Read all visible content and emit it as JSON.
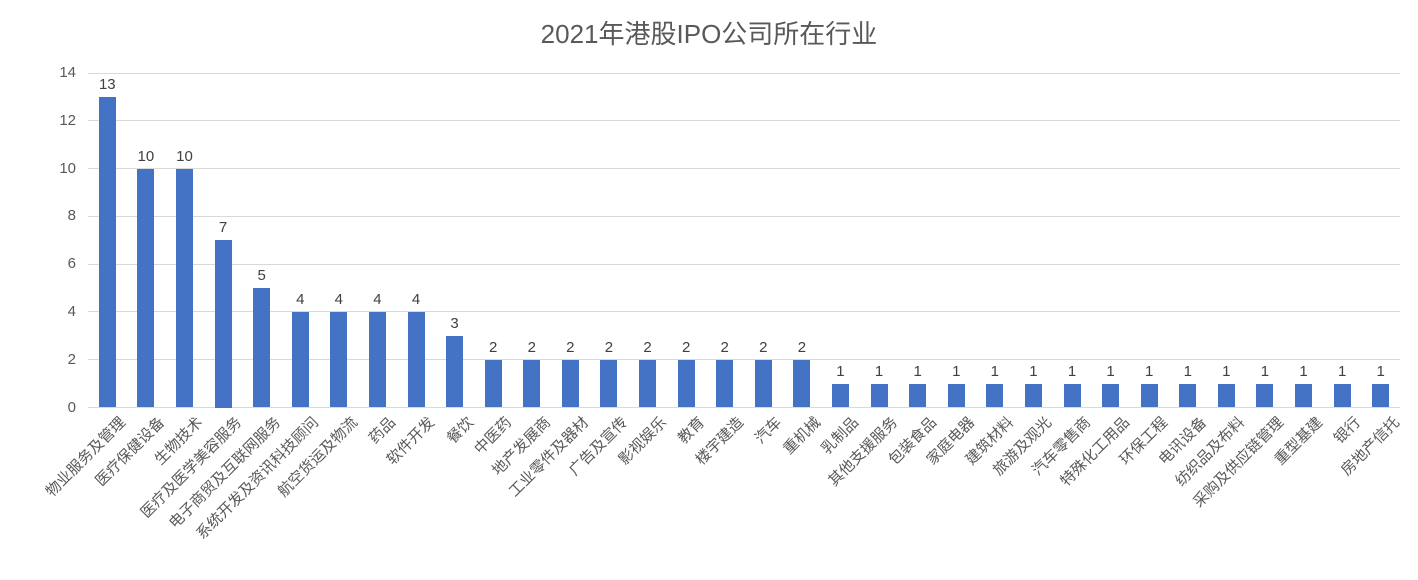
{
  "title": "2021年港股IPO公司所在行业",
  "chart_data": {
    "type": "bar",
    "title": "2021年港股IPO公司所在行业",
    "xlabel": "",
    "ylabel": "",
    "ylim": [
      0,
      14
    ],
    "yticks": [
      0,
      2,
      4,
      6,
      8,
      10,
      12,
      14
    ],
    "grid": true,
    "legend": "none",
    "data_labels": true,
    "categories": [
      "物业服务及管理",
      "医疗保健设备",
      "生物技术",
      "医疗及医学美容服务",
      "电子商贸及互联网服务",
      "系统开发及资讯科技顾问",
      "航空货运及物流",
      "药品",
      "软件开发",
      "餐饮",
      "中医药",
      "地产发展商",
      "工业零件及器材",
      "广告及宣传",
      "影视娱乐",
      "教育",
      "楼宇建造",
      "汽车",
      "重机械",
      "乳制品",
      "其他支援服务",
      "包装食品",
      "家庭电器",
      "建筑材料",
      "旅游及观光",
      "汽车零售商",
      "特殊化工用品",
      "环保工程",
      "电讯设备",
      "纺织品及布料",
      "采购及供应链管理",
      "重型基建",
      "银行",
      "房地产信托"
    ],
    "values": [
      13,
      10,
      10,
      7,
      5,
      4,
      4,
      4,
      4,
      3,
      2,
      2,
      2,
      2,
      2,
      2,
      2,
      2,
      2,
      1,
      1,
      1,
      1,
      1,
      1,
      1,
      1,
      1,
      1,
      1,
      1,
      1,
      1,
      1
    ]
  },
  "style": {
    "bar_color": "#4472C4",
    "gridline_color": "#D9D9D9",
    "title_color": "#595959",
    "axis_label_color": "#595959",
    "value_label_color": "#404040",
    "background": "#FFFFFF"
  }
}
